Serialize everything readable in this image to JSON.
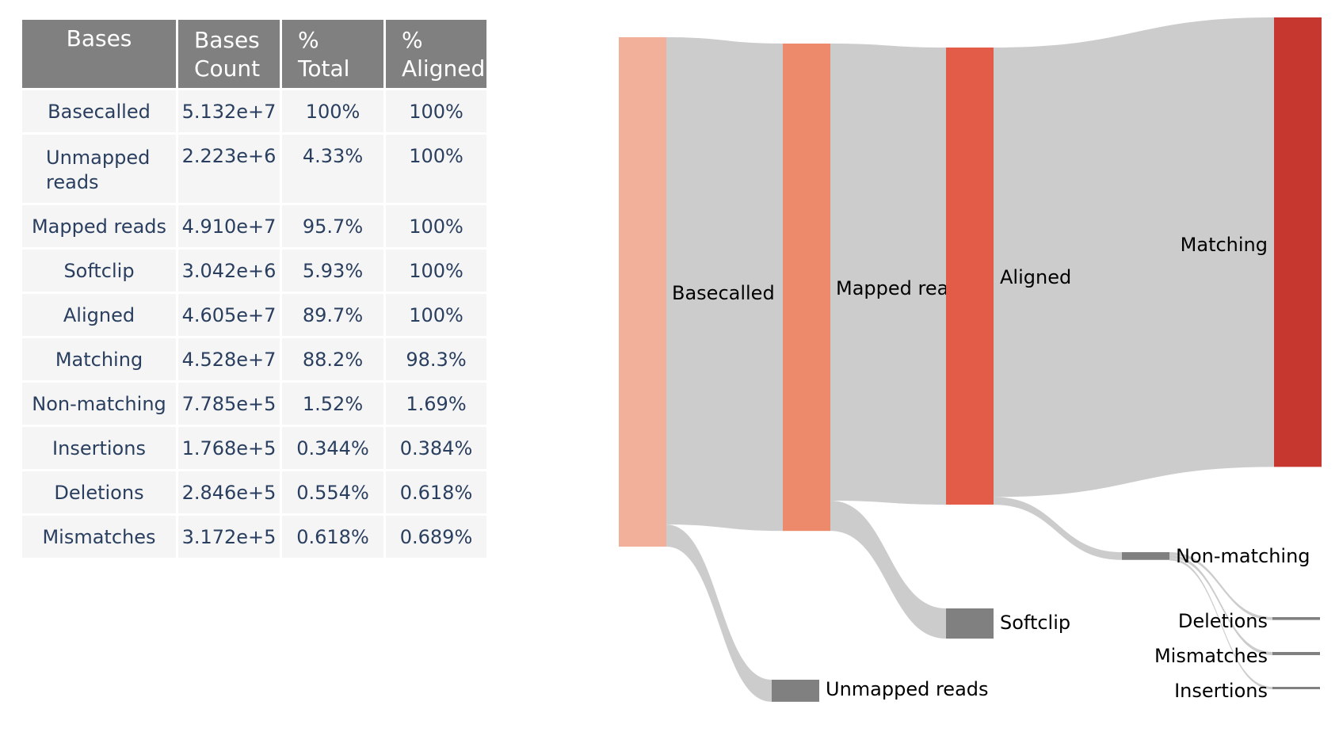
{
  "table": {
    "headers": [
      [
        "Bases"
      ],
      [
        "Bases",
        "Count"
      ],
      [
        "%",
        "Total"
      ],
      [
        "%",
        "Aligned"
      ]
    ],
    "rows": [
      {
        "label": [
          "Basecalled"
        ],
        "count": "5.132e+7",
        "total": "100%",
        "aligned": "100%"
      },
      {
        "label": [
          "Unmapped",
          "reads"
        ],
        "count": "2.223e+6",
        "total": "4.33%",
        "aligned": "100%"
      },
      {
        "label": [
          "Mapped reads"
        ],
        "count": "4.910e+7",
        "total": "95.7%",
        "aligned": "100%"
      },
      {
        "label": [
          "Softclip"
        ],
        "count": "3.042e+6",
        "total": "5.93%",
        "aligned": "100%"
      },
      {
        "label": [
          "Aligned"
        ],
        "count": "4.605e+7",
        "total": "89.7%",
        "aligned": "100%"
      },
      {
        "label": [
          "Matching"
        ],
        "count": "4.528e+7",
        "total": "88.2%",
        "aligned": "98.3%"
      },
      {
        "label": [
          "Non-matching"
        ],
        "count": "7.785e+5",
        "total": "1.52%",
        "aligned": "1.69%"
      },
      {
        "label": [
          "Insertions"
        ],
        "count": "1.768e+5",
        "total": "0.344%",
        "aligned": "0.384%"
      },
      {
        "label": [
          "Deletions"
        ],
        "count": "2.846e+5",
        "total": "0.554%",
        "aligned": "0.618%"
      },
      {
        "label": [
          "Mismatches"
        ],
        "count": "3.172e+5",
        "total": "0.618%",
        "aligned": "0.689%"
      }
    ]
  },
  "chart_data": {
    "type": "sankey",
    "nodes": [
      {
        "id": "basecalled",
        "label": "Basecalled",
        "value": 51320000,
        "color": "#f2b09a"
      },
      {
        "id": "unmapped",
        "label": "Unmapped reads",
        "value": 2223000,
        "color": "#808080"
      },
      {
        "id": "mapped",
        "label": "Mapped rea",
        "value": 49100000,
        "color": "#ee8a6c"
      },
      {
        "id": "softclip",
        "label": "Softclip",
        "value": 3042000,
        "color": "#808080"
      },
      {
        "id": "aligned",
        "label": "Aligned",
        "value": 46050000,
        "color": "#e25c47"
      },
      {
        "id": "matching",
        "label": "Matching",
        "value": 45280000,
        "color": "#c6372f"
      },
      {
        "id": "nonmatching",
        "label": "Non-matching",
        "value": 778500,
        "color": "#808080"
      },
      {
        "id": "deletions",
        "label": "Deletions",
        "value": 284600,
        "color": "#808080"
      },
      {
        "id": "mismatches",
        "label": "Mismatches",
        "value": 317200,
        "color": "#808080"
      },
      {
        "id": "insertions",
        "label": "Insertions",
        "value": 176800,
        "color": "#808080"
      }
    ],
    "links": [
      {
        "source": "basecalled",
        "target": "mapped",
        "value": 49100000
      },
      {
        "source": "basecalled",
        "target": "unmapped",
        "value": 2223000
      },
      {
        "source": "mapped",
        "target": "aligned",
        "value": 46050000
      },
      {
        "source": "mapped",
        "target": "softclip",
        "value": 3042000
      },
      {
        "source": "aligned",
        "target": "matching",
        "value": 45280000
      },
      {
        "source": "aligned",
        "target": "nonmatching",
        "value": 778500
      },
      {
        "source": "nonmatching",
        "target": "deletions",
        "value": 284600
      },
      {
        "source": "nonmatching",
        "target": "mismatches",
        "value": 317200
      },
      {
        "source": "nonmatching",
        "target": "insertions",
        "value": 176800
      }
    ],
    "link_color": "#cccccc"
  }
}
